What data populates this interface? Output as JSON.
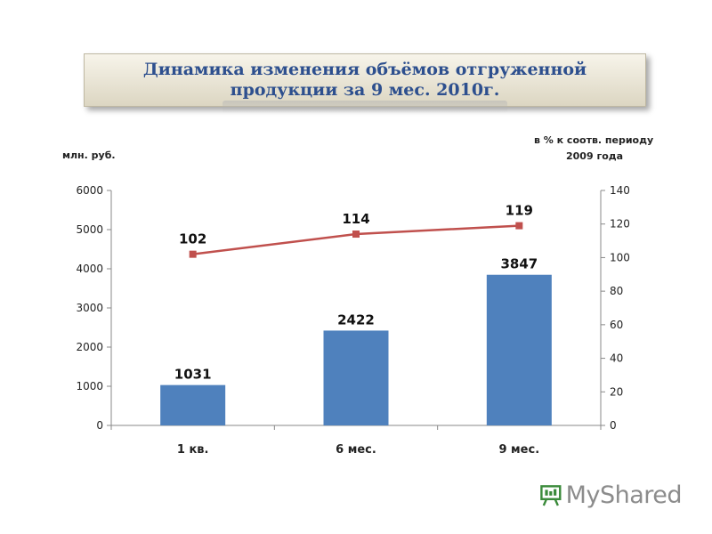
{
  "title": "Динамика изменения объёмов отгруженной\nпродукции за 9 мес. 2010г.",
  "left_axis_unit": "млн. руб.",
  "right_axis_unit_line1": "в % к соотв. периоду",
  "right_axis_unit_line2": "2009 года",
  "logo_text": "MyShared",
  "colors": {
    "bar": "#4f81bd",
    "line": "#c0504d",
    "title": "#2d4f8e"
  },
  "chart_data": {
    "type": "bar",
    "categories": [
      "1 кв.",
      "6 мес.",
      "9 мес."
    ],
    "series": [
      {
        "values": [
          1031,
          2422,
          3847
        ],
        "axis": "left",
        "kind": "bar"
      },
      {
        "values": [
          102,
          114,
          119
        ],
        "axis": "right",
        "kind": "line"
      }
    ],
    "ylim_left": [
      0,
      6000
    ],
    "yticks_left": [
      0,
      1000,
      2000,
      3000,
      4000,
      5000,
      6000
    ],
    "ylim_right": [
      0,
      140
    ],
    "yticks_right": [
      0,
      20,
      40,
      60,
      80,
      100,
      120,
      140
    ],
    "grid": false,
    "legend": "none"
  }
}
